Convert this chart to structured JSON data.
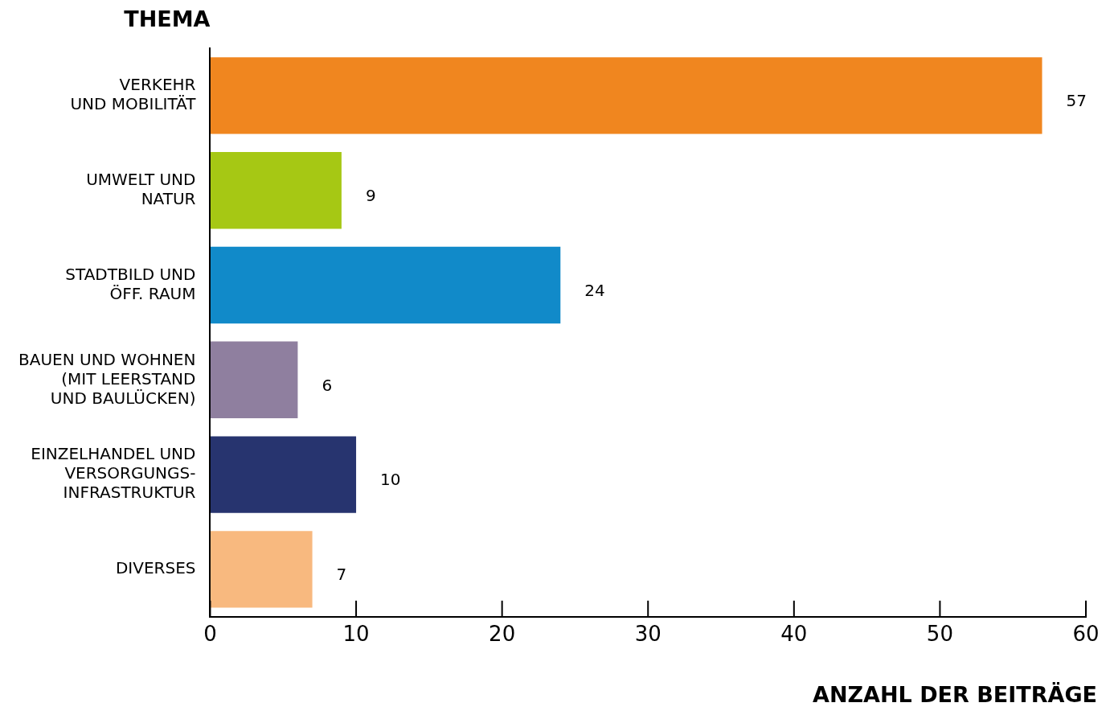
{
  "chart_data": {
    "type": "bar",
    "orientation": "horizontal",
    "xlabel": "ANZAHL DER BEITRÄGE",
    "ylabel": "THEMA",
    "categories": [
      "VERKEHR\nUND MOBILITÄT",
      "UMWELT UND\nNATUR",
      "STADTBILD UND\nÖFF. RAUM",
      "BAUEN UND WOHNEN\n(MIT LEERSTAND\nUND BAULÜCKEN)",
      "EINZELHANDEL UND\nVERSORGUNGS-\nINFRASTRUKTUR",
      "DIVERSES"
    ],
    "values": [
      57,
      9,
      24,
      6,
      10,
      7
    ],
    "colors": [
      "#f0861f",
      "#a6c814",
      "#118ac9",
      "#8f7f9f",
      "#27346f",
      "#f8b97f"
    ],
    "xlim": [
      0,
      60
    ],
    "xticks": [
      0,
      10,
      20,
      30,
      40,
      50,
      60
    ],
    "data_labels": true,
    "legend": false
  }
}
